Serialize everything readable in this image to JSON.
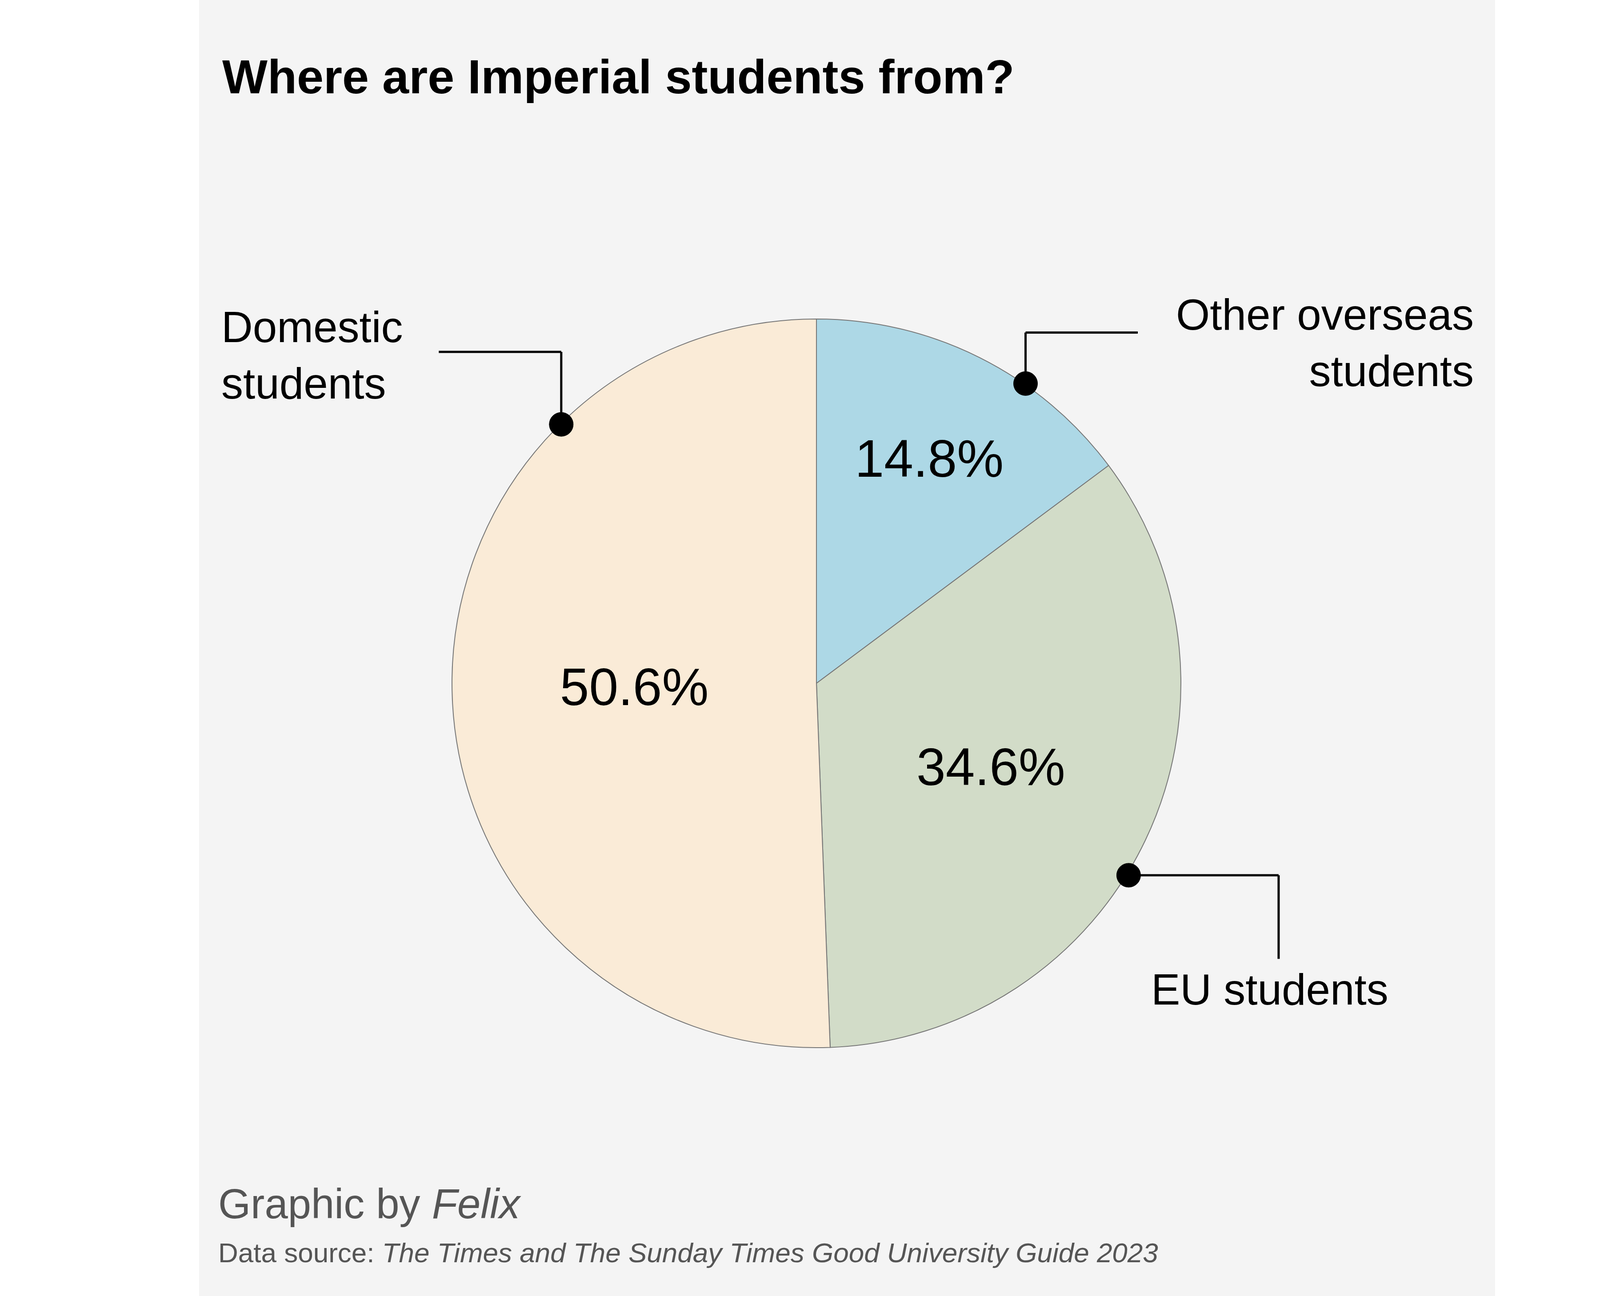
{
  "chart_data": {
    "type": "pie",
    "title": "Where are Imperial students from?",
    "categories": [
      "Other overseas students",
      "EU students",
      "Domestic students"
    ],
    "values": [
      14.8,
      34.6,
      50.6
    ],
    "value_labels": [
      "14.8%",
      "34.6%",
      "50.6%"
    ],
    "colors": [
      "#add8e6",
      "#d2dcc8",
      "#faebd7"
    ],
    "data_labels": true,
    "credit": {
      "text": "Graphic by",
      "name": "Felix"
    },
    "source": {
      "label": "Data source:",
      "text": "The Times and The Sunday Times Good University Guide 2023"
    }
  }
}
